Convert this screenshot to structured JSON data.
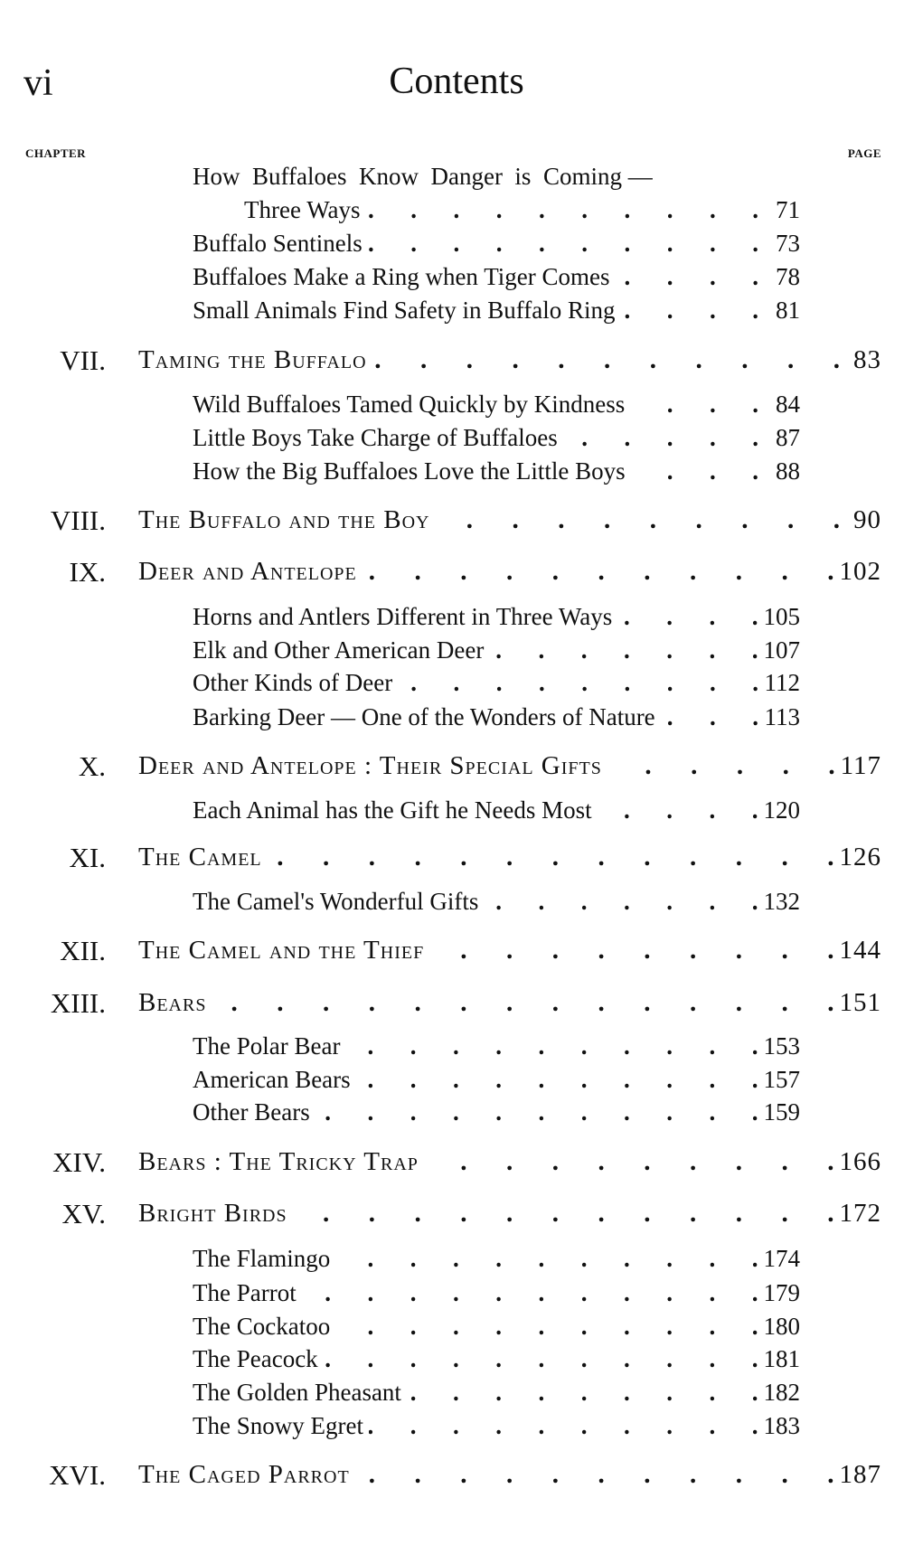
{
  "header": {
    "folio": "vi",
    "title": "Contents",
    "chapter_label": "CHAPTER",
    "page_label": "PAGE"
  },
  "entries": [
    {
      "type": "sub",
      "title": "How  Buffaloes  Know  Danger  is  Coming —",
      "page": ""
    },
    {
      "type": "subcont",
      "title": "Three Ways",
      "page": "71"
    },
    {
      "type": "sub",
      "title": "Buffalo Sentinels",
      "page": "73"
    },
    {
      "type": "sub",
      "title": "Buffaloes Make a Ring when Tiger Comes",
      "page": "78"
    },
    {
      "type": "sub",
      "title": "Small Animals Find Safety in Buffalo Ring",
      "page": "81"
    },
    {
      "type": "chap",
      "numeral": "VII.",
      "title": "Taming the Buffalo",
      "page": "83"
    },
    {
      "type": "sub",
      "title": "Wild Buffaloes Tamed Quickly by Kindness",
      "page": "84"
    },
    {
      "type": "sub",
      "title": "Little Boys Take Charge of Buffaloes",
      "page": "87"
    },
    {
      "type": "sub",
      "title": "How the Big Buffaloes Love the Little Boys",
      "page": "88"
    },
    {
      "type": "chap",
      "numeral": "VIII.",
      "title": "The Buffalo and the Boy",
      "page": "90"
    },
    {
      "type": "chap",
      "numeral": "IX.",
      "title": "Deer and Antelope",
      "page": "102"
    },
    {
      "type": "sub",
      "title": "Horns and Antlers Different in Three Ways",
      "page": "105"
    },
    {
      "type": "sub",
      "title": "Elk and Other American Deer",
      "page": "107"
    },
    {
      "type": "sub",
      "title": "Other Kinds of Deer",
      "page": "112"
    },
    {
      "type": "sub",
      "title": "Barking Deer — One of the Wonders of Nature",
      "page": "113"
    },
    {
      "type": "chap",
      "numeral": "X.",
      "title": "Deer and Antelope : Their Special Gifts",
      "page": "117"
    },
    {
      "type": "sub",
      "title": "Each Animal has the Gift he Needs Most",
      "page": "120"
    },
    {
      "type": "chap",
      "numeral": "XI.",
      "title": "The Camel",
      "page": "126"
    },
    {
      "type": "sub",
      "title": "The Camel's Wonderful Gifts",
      "page": "132"
    },
    {
      "type": "chap",
      "numeral": "XII.",
      "title": "The Camel and the Thief",
      "page": "144"
    },
    {
      "type": "chap",
      "numeral": "XIII.",
      "title": "Bears",
      "page": "151"
    },
    {
      "type": "sub",
      "title": "The Polar Bear",
      "page": "153"
    },
    {
      "type": "sub",
      "title": "American Bears",
      "page": "157"
    },
    {
      "type": "sub",
      "title": "Other Bears",
      "page": "159"
    },
    {
      "type": "chap",
      "numeral": "XIV.",
      "title": "Bears : The Tricky Trap",
      "page": "166"
    },
    {
      "type": "chap",
      "numeral": "XV.",
      "title": "Bright Birds",
      "page": "172"
    },
    {
      "type": "sub",
      "title": "The Flamingo",
      "page": "174"
    },
    {
      "type": "sub",
      "title": "The Parrot",
      "page": "179"
    },
    {
      "type": "sub",
      "title": "The Cockatoo",
      "page": "180"
    },
    {
      "type": "sub",
      "title": "The Peacock",
      "page": "181"
    },
    {
      "type": "sub",
      "title": "The Golden Pheasant",
      "page": "182"
    },
    {
      "type": "sub",
      "title": "The Snowy Egret",
      "page": "183"
    },
    {
      "type": "chap",
      "numeral": "XVI.",
      "title": "The Caged Parrot",
      "page": "187"
    }
  ]
}
